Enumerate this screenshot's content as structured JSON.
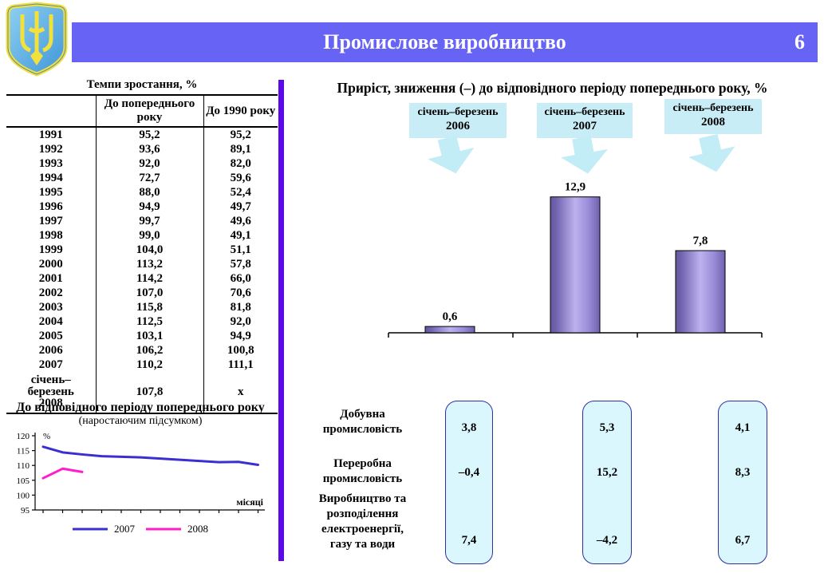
{
  "header": {
    "title": "Промислове виробництво",
    "page_number": "6"
  },
  "growth_table": {
    "title": "Темпи зростання, %",
    "col2_header": "До попереднього року",
    "col3_header": "До 1990 року",
    "rows": [
      [
        "1991",
        "95,2",
        "95,2"
      ],
      [
        "1992",
        "93,6",
        "89,1"
      ],
      [
        "1993",
        "92,0",
        "82,0"
      ],
      [
        "1994",
        "72,7",
        "59,6"
      ],
      [
        "1995",
        "88,0",
        "52,4"
      ],
      [
        "1996",
        "94,9",
        "49,7"
      ],
      [
        "1997",
        "99,7",
        "49,6"
      ],
      [
        "1998",
        "99,0",
        "49,1"
      ],
      [
        "1999",
        "104,0",
        "51,1"
      ],
      [
        "2000",
        "113,2",
        "57,8"
      ],
      [
        "2001",
        "114,2",
        "66,0"
      ],
      [
        "2002",
        "107,0",
        "70,6"
      ],
      [
        "2003",
        "115,8",
        "81,8"
      ],
      [
        "2004",
        "112,5",
        "92,0"
      ],
      [
        "2005",
        "103,1",
        "94,9"
      ],
      [
        "2006",
        "106,2",
        "100,8"
      ],
      [
        "2007",
        "110,2",
        "111,1"
      ],
      [
        "січень–\nберезень\n2008",
        "107,8",
        "х"
      ]
    ]
  },
  "right_title": "Приріст, зниження (–) до відповідного періоду попереднього року, %",
  "periods": [
    {
      "line1": "січень–березень",
      "line2": "2006"
    },
    {
      "line1": "січень–березень",
      "line2": "2007"
    },
    {
      "line1": "січень–березень",
      "line2": "2008"
    }
  ],
  "breakdown": {
    "sectors": [
      "Добувна\nпромисловість",
      "Переробна\nпромисловість",
      "Виробництво та\nрозподілення\nелектроенергії,\nгазу та води"
    ],
    "columns": [
      {
        "values": [
          "3,8",
          "–0,4",
          "7,4"
        ]
      },
      {
        "values": [
          "5,3",
          "15,2",
          "–4,2"
        ]
      },
      {
        "values": [
          "4,1",
          "8,3",
          "6,7"
        ]
      }
    ]
  },
  "chart_data": [
    {
      "type": "bar",
      "title": "Приріст, зниження (–) до відповідного періоду попереднього року, %",
      "categories": [
        "січень–березень 2006",
        "січень–березень 2007",
        "січень–березень 2008"
      ],
      "values": [
        0.6,
        12.9,
        7.8
      ],
      "value_labels": [
        "0,6",
        "12,9",
        "7,8"
      ],
      "ylim": [
        0,
        14
      ],
      "grid": false,
      "legend": false
    },
    {
      "type": "line",
      "title": "До відповідного періоду попереднього року",
      "subtitle": "(наростаючим підсумком)",
      "ylabel": "%",
      "xlabel": "місяці",
      "ylim": [
        95,
        120
      ],
      "yticks": [
        95,
        100,
        105,
        110,
        115,
        120
      ],
      "x_months": 12,
      "grid": false,
      "legend_position": "bottom",
      "series": [
        {
          "name": "2007",
          "color": "#3b2fd0",
          "values": [
            116.3,
            114.4,
            113.7,
            113.1,
            112.9,
            112.7,
            112.3,
            111.9,
            111.5,
            111.1,
            111.2,
            110.2
          ]
        },
        {
          "name": "2008",
          "color": "#ff1ecb",
          "values": [
            105.7,
            108.9,
            107.8
          ]
        }
      ]
    }
  ],
  "colors": {
    "header_bar": "#6763f5",
    "divider": "#5b09e6",
    "period_box": "#c9edf7",
    "arrow": "#c2ecf6",
    "value_box_bg": "#daf7fd",
    "value_box_border": "#2f2f9e",
    "bar_edge": "#65589e",
    "bar_center": "#bdb1ee",
    "line_2007": "#3b2fd0",
    "line_2008": "#ff1ecb"
  }
}
